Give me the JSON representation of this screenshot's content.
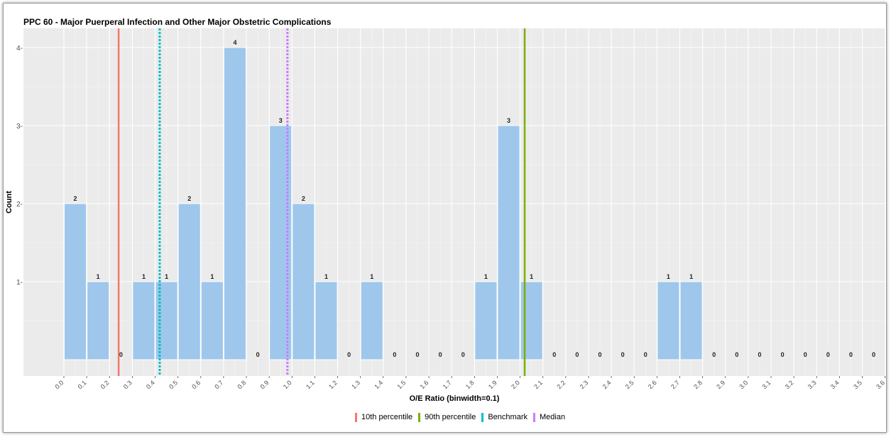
{
  "chart_data": {
    "type": "bar",
    "title": "PPC 60 - Major Puerperal Infection and Other Major Obstetric Complications",
    "xlabel": "O/E Ratio (binwidth=0.1)",
    "ylabel": "Count",
    "x_ticks": [
      "0.0",
      "0.1",
      "0.2",
      "0.3",
      "0.4",
      "0.5",
      "0.6",
      "0.7",
      "0.8",
      "0.9",
      "1.0",
      "1.1",
      "1.2",
      "1.3",
      "1.4",
      "1.5",
      "1.6",
      "1.7",
      "1.8",
      "1.9",
      "2.0",
      "2.1",
      "2.2",
      "2.3",
      "2.4",
      "2.5",
      "2.6",
      "2.7",
      "2.8",
      "2.9",
      "3.0",
      "3.1",
      "3.2",
      "3.3",
      "3.4",
      "3.5",
      "3.6"
    ],
    "y_ticks": [
      "1-",
      "2-",
      "3-",
      "4-"
    ],
    "ylim": [
      0,
      4
    ],
    "grid": true,
    "legend_position": "bottom",
    "bins": [
      {
        "x": 0.05,
        "count": 2
      },
      {
        "x": 0.15,
        "count": 1
      },
      {
        "x": 0.25,
        "count": 0
      },
      {
        "x": 0.35,
        "count": 1
      },
      {
        "x": 0.45,
        "count": 1
      },
      {
        "x": 0.55,
        "count": 2
      },
      {
        "x": 0.65,
        "count": 1
      },
      {
        "x": 0.75,
        "count": 4
      },
      {
        "x": 0.85,
        "count": 0
      },
      {
        "x": 0.95,
        "count": 3
      },
      {
        "x": 1.05,
        "count": 2
      },
      {
        "x": 1.15,
        "count": 1
      },
      {
        "x": 1.25,
        "count": 0
      },
      {
        "x": 1.35,
        "count": 1
      },
      {
        "x": 1.45,
        "count": 0
      },
      {
        "x": 1.55,
        "count": 0
      },
      {
        "x": 1.65,
        "count": 0
      },
      {
        "x": 1.75,
        "count": 0
      },
      {
        "x": 1.85,
        "count": 1
      },
      {
        "x": 1.95,
        "count": 3
      },
      {
        "x": 2.05,
        "count": 1
      },
      {
        "x": 2.15,
        "count": 0
      },
      {
        "x": 2.25,
        "count": 0
      },
      {
        "x": 2.35,
        "count": 0
      },
      {
        "x": 2.45,
        "count": 0
      },
      {
        "x": 2.55,
        "count": 0
      },
      {
        "x": 2.65,
        "count": 1
      },
      {
        "x": 2.75,
        "count": 1
      },
      {
        "x": 2.85,
        "count": 0
      },
      {
        "x": 2.95,
        "count": 0
      },
      {
        "x": 3.05,
        "count": 0
      },
      {
        "x": 3.15,
        "count": 0
      },
      {
        "x": 3.25,
        "count": 0
      },
      {
        "x": 3.35,
        "count": 0
      },
      {
        "x": 3.45,
        "count": 0
      },
      {
        "x": 3.55,
        "count": 0
      }
    ],
    "reference_lines": [
      {
        "name": "10th percentile",
        "x": 0.24,
        "color": "#f8766d",
        "style": "solid"
      },
      {
        "name": "90th percentile",
        "x": 2.02,
        "color": "#7cae00",
        "style": "solid"
      },
      {
        "name": "Benchmark",
        "x": 0.42,
        "color": "#00bfc4",
        "style": "dotted"
      },
      {
        "name": "Median",
        "x": 0.98,
        "color": "#c77cff",
        "style": "dotted"
      }
    ],
    "colors": {
      "bar_fill": "#9fc7ec",
      "panel_background": "#ebebeb",
      "grid": "#ffffff"
    }
  }
}
